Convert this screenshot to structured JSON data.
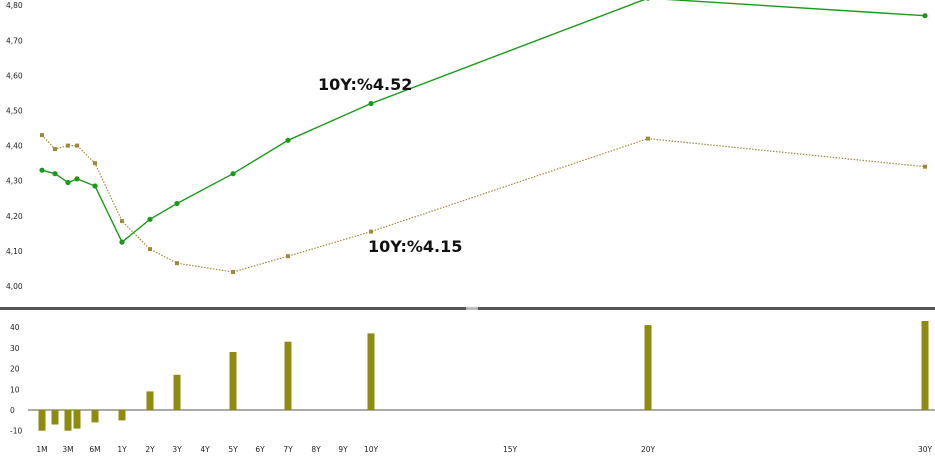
{
  "chart_data": [
    {
      "type": "line",
      "title": "",
      "xlabel": "",
      "ylabel": "",
      "x": [
        1,
        2,
        3,
        4,
        6,
        12,
        24,
        36,
        60,
        84,
        120,
        240,
        360
      ],
      "ylim": [
        3.96,
        4.82
      ],
      "yticks": [
        "4,00",
        "4,10",
        "4,20",
        "4,30",
        "4,40",
        "4,50",
        "4,60",
        "4,70",
        "4,80"
      ],
      "grid": false,
      "legend": "none",
      "series": [
        {
          "color": "#1a9a1a",
          "style": "solid",
          "marker": "circle",
          "values": [
            4.33,
            4.32,
            4.295,
            4.305,
            4.285,
            4.125,
            4.19,
            4.235,
            4.32,
            4.415,
            4.52,
            4.82,
            4.77
          ]
        },
        {
          "color": "#a08a3a",
          "style": "dotted",
          "marker": "square",
          "values": [
            4.43,
            4.39,
            4.4,
            4.4,
            4.35,
            4.185,
            4.105,
            4.065,
            4.04,
            4.085,
            4.155,
            4.42,
            4.34
          ]
        }
      ],
      "annotations": [
        "10Y:%4.52",
        "10Y:%4.15"
      ]
    },
    {
      "type": "bar",
      "title": "",
      "x": [
        1,
        2,
        3,
        4,
        6,
        12,
        24,
        36,
        60,
        84,
        120,
        240,
        360
      ],
      "color": "#8f8a10",
      "values": [
        -10,
        -7,
        -10,
        -9,
        -6,
        -5,
        9,
        17,
        28,
        33,
        37,
        41,
        43
      ],
      "ylim": [
        -13,
        46
      ],
      "yticks": [
        "-10",
        "0",
        "10",
        "20",
        "30",
        "40"
      ]
    }
  ],
  "xaxis_labels": [
    "1M",
    "3M",
    "6M",
    "1Y",
    "2Y",
    "3Y",
    "4Y",
    "5Y",
    "6Y",
    "7Y",
    "8Y",
    "9Y",
    "10Y",
    "15Y",
    "20Y",
    "30Y"
  ],
  "xaxis_positions": [
    1,
    3,
    6,
    12,
    24,
    36,
    48,
    60,
    72,
    84,
    96,
    108,
    120,
    180,
    240,
    360
  ]
}
